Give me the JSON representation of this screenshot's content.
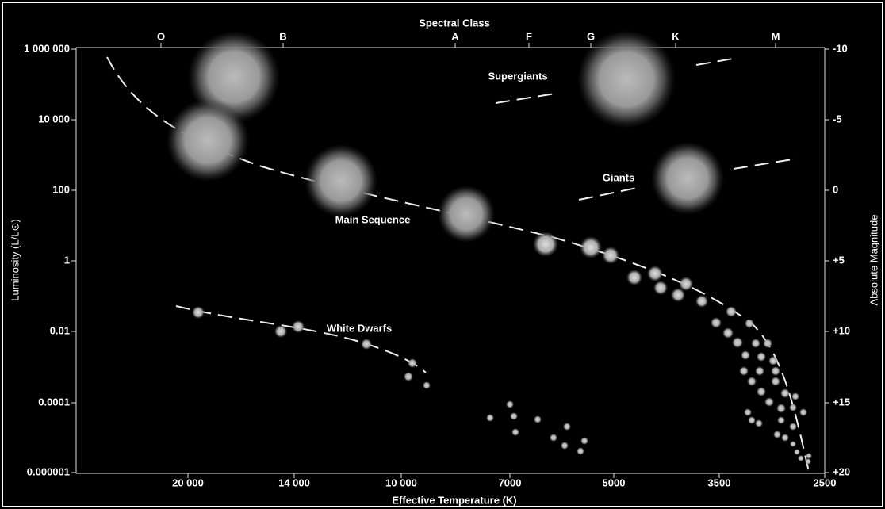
{
  "top_axis": {
    "label": "Spectral Class",
    "classes": [
      "O",
      "B",
      "A",
      "F",
      "G",
      "K",
      "M"
    ]
  },
  "bottom_axis": {
    "label": "Effective Temperature (K)",
    "ticks": [
      "20 000",
      "14 000",
      "10 000",
      "7000",
      "5000",
      "3500",
      "2500"
    ]
  },
  "left_axis": {
    "label": "Luminosity (L/L⊙)",
    "ticks": [
      "1 000 000",
      "10 000",
      "100",
      "1",
      "0.01",
      "0.0001",
      "0.000001"
    ]
  },
  "right_axis": {
    "label": "Absolute Magnitude",
    "ticks": [
      "-10",
      "-5",
      "0",
      "+5",
      "+10",
      "+15",
      "+20"
    ]
  },
  "regions": {
    "supergiants": "Supergiants",
    "giants": "Giants",
    "main_sequence": "Main Sequence",
    "white_dwarfs": "White Dwarfs"
  }
}
